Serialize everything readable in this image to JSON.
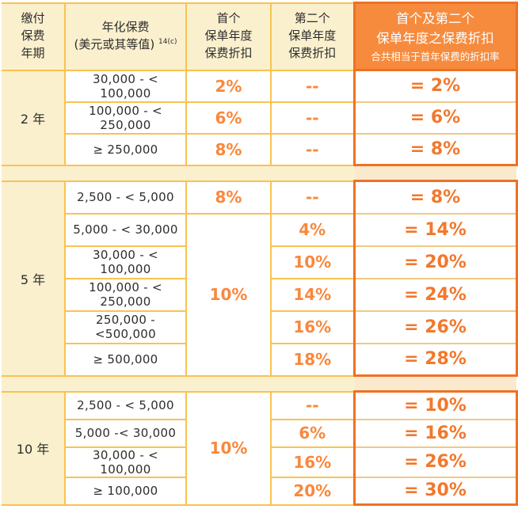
{
  "colors": {
    "grid_gold": "#F9C252",
    "combined_border_orange": "#EF7123",
    "combined_header_bg": "#F68B3E",
    "cream_bg": "#FBF0CE",
    "percent_orange": "#F9883D",
    "combined_percent_orange": "#F2782C",
    "text_ink": "#2D2D2D"
  },
  "table": {
    "header": {
      "term_lines": [
        "缴付",
        "保费",
        "年期"
      ],
      "premium_line1": "年化保费",
      "premium_line2": "(美元或其等值)",
      "premium_sup": "14(c)",
      "first_year_lines": [
        "首个",
        "保单年度",
        "保费折扣"
      ],
      "second_year_lines": [
        "第二个",
        "保单年度",
        "保费折扣"
      ],
      "combined_line1": "首个及第二个",
      "combined_line2": "保单年度之保费折扣",
      "combined_subtitle": "合共相当于首年保费的折扣率"
    },
    "sections": [
      {
        "term": "2 年",
        "rows": [
          {
            "range": "30,000 - < 100,000",
            "first": "2%",
            "second": "--",
            "combined": "= 2%"
          },
          {
            "range": "100,000 - < 250,000",
            "first": "6%",
            "second": "--",
            "combined": "= 6%"
          },
          {
            "range": "≥ 250,000",
            "first": "8%",
            "second": "--",
            "combined": "= 8%"
          }
        ]
      },
      {
        "term": "5 年",
        "first_merged": "10%",
        "rows": [
          {
            "range": "2,500 - < 5,000",
            "first": "8%",
            "second": "--",
            "combined": "= 8%"
          },
          {
            "range": "5,000 - < 30,000",
            "second": "4%",
            "combined": "= 14%"
          },
          {
            "range": "30,000 - < 100,000",
            "second": "10%",
            "combined": "= 20%"
          },
          {
            "range": "100,000 - < 250,000",
            "second": "14%",
            "combined": "= 24%"
          },
          {
            "range": "250,000 - <500,000",
            "second": "16%",
            "combined": "= 26%"
          },
          {
            "range": "≥ 500,000",
            "second": "18%",
            "combined": "= 28%"
          }
        ]
      },
      {
        "term": "10 年",
        "first_merged": "10%",
        "rows": [
          {
            "range": "2,500 - < 5,000",
            "second": "--",
            "combined": "= 10%"
          },
          {
            "range": "5,000 -< 30,000",
            "second": "6%",
            "combined": "= 16%"
          },
          {
            "range": "30,000 - < 100,000",
            "second": "16%",
            "combined": "= 26%"
          },
          {
            "range": "≥ 100,000",
            "second": "20%",
            "combined": "= 30%"
          }
        ]
      }
    ]
  }
}
